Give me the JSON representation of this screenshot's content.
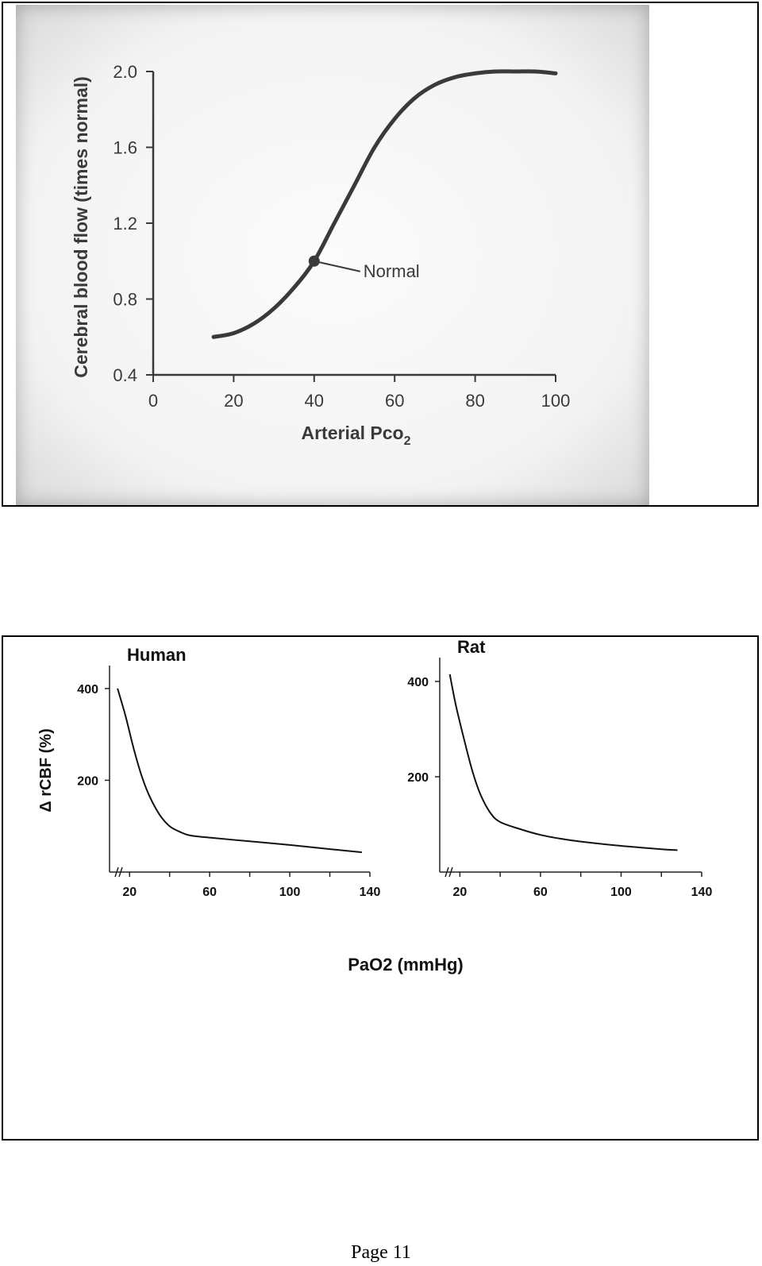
{
  "chart_data": [
    {
      "type": "line",
      "title": "",
      "xlabel": "Arterial Pco",
      "xlabel_subscript": "2",
      "ylabel": "Cerebral blood flow (times normal)",
      "xlim": [
        0,
        100
      ],
      "ylim": [
        0.4,
        2.0
      ],
      "x_ticks": [
        0,
        20,
        40,
        60,
        80,
        100
      ],
      "y_ticks": [
        0.4,
        0.8,
        1.2,
        1.6,
        2.0
      ],
      "x_tick_labels": [
        "0",
        "20",
        "40",
        "60",
        "80",
        "100"
      ],
      "y_tick_labels": [
        "0.4",
        "0.8",
        "1.2",
        "1.6",
        "2.0"
      ],
      "grid": false,
      "series": [
        {
          "x": [
            15,
            20,
            25,
            30,
            35,
            40,
            45,
            50,
            55,
            60,
            65,
            70,
            75,
            80,
            85,
            90,
            95,
            100
          ],
          "y": [
            0.6,
            0.62,
            0.67,
            0.75,
            0.86,
            1.0,
            1.2,
            1.4,
            1.6,
            1.75,
            1.86,
            1.93,
            1.97,
            1.99,
            2.0,
            2.0,
            2.0,
            1.99
          ]
        }
      ],
      "annotations": [
        {
          "label": "Normal",
          "x": 40,
          "y": 1.0
        }
      ],
      "color": "#3a3a3a"
    },
    {
      "type": "line",
      "title": "Human",
      "ylabel": "Δ rCBF (%)",
      "xlabel": "PaO2 (mmHg)",
      "xlim": [
        10,
        140
      ],
      "ylim": [
        0,
        450
      ],
      "x_ticks": [
        20,
        60,
        100,
        140
      ],
      "x_tick_labels": [
        "20",
        "60",
        "100",
        "140"
      ],
      "y_ticks": [
        200,
        400
      ],
      "y_tick_labels": [
        "200",
        "400"
      ],
      "axis_break": true,
      "grid": false,
      "series": [
        {
          "x": [
            14,
            18,
            22,
            26,
            30,
            35,
            40,
            45,
            50,
            60,
            80,
            100,
            120,
            136
          ],
          "y": [
            400,
            340,
            270,
            210,
            165,
            125,
            100,
            88,
            80,
            75,
            67,
            59,
            50,
            43
          ]
        }
      ],
      "color": "#111111"
    },
    {
      "type": "line",
      "title": "Rat",
      "xlabel": "PaO2 (mmHg)",
      "xlim": [
        10,
        140
      ],
      "ylim": [
        0,
        450
      ],
      "x_ticks": [
        20,
        60,
        100,
        140
      ],
      "x_tick_labels": [
        "20",
        "60",
        "100",
        "140"
      ],
      "y_ticks": [
        200,
        400
      ],
      "y_tick_labels": [
        "200",
        "400"
      ],
      "axis_break": true,
      "grid": false,
      "series": [
        {
          "x": [
            15,
            18,
            22,
            26,
            30,
            35,
            40,
            50,
            60,
            70,
            80,
            100,
            120,
            128
          ],
          "y": [
            415,
            350,
            280,
            215,
            165,
            125,
            105,
            90,
            78,
            70,
            64,
            55,
            48,
            46
          ]
        }
      ],
      "color": "#111111"
    }
  ],
  "shared_xlabel": "PaO2 (mmHg)",
  "footer": {
    "page_label": "Page 11"
  }
}
